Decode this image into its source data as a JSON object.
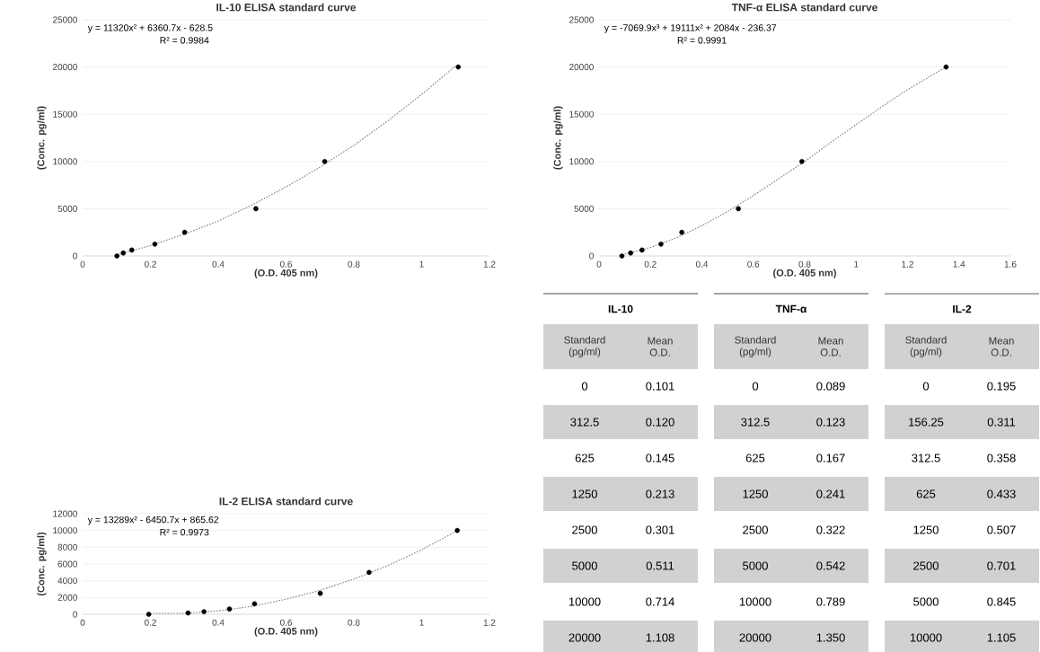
{
  "chart_data": [
    {
      "type": "scatter",
      "title": "IL-10 ELISA standard curve",
      "xlabel": "(O.D. 405 nm)",
      "ylabel": "(Conc. pg/ml)",
      "xlim": [
        0,
        1.2
      ],
      "ylim": [
        0,
        25000
      ],
      "xticks": [
        0,
        0.2,
        0.4,
        0.6,
        0.8,
        1,
        1.2
      ],
      "yticks": [
        0,
        5000,
        10000,
        15000,
        20000,
        25000
      ],
      "grid": "y",
      "annotations": [
        "y = 11320x² + 6360.7x - 628.5",
        "R² = 0.9984"
      ],
      "series": [
        {
          "marker": "circle",
          "color": "#000000",
          "x": [
            0.101,
            0.12,
            0.145,
            0.213,
            0.301,
            0.511,
            0.714,
            1.108
          ],
          "values": [
            0,
            312.5,
            625,
            1250,
            2500,
            5000,
            10000,
            20000
          ]
        },
        {
          "type": "line",
          "marker": "none",
          "line_style": "dotted",
          "color": "#7f7f7f",
          "x": [
            0.1,
            0.2,
            0.3,
            0.4,
            0.5,
            0.6,
            0.7,
            0.8,
            0.9,
            1.0,
            1.1
          ],
          "values": [
            100,
            1100,
            2300,
            3700,
            5400,
            7300,
            9400,
            11700,
            14300,
            17100,
            20100
          ]
        }
      ]
    },
    {
      "type": "scatter",
      "title": "TNF-α ELISA standard curve",
      "xlabel": "(O.D. 405 nm)",
      "ylabel": "(Conc. pg/ml)",
      "xlim": [
        0,
        1.6
      ],
      "ylim": [
        0,
        25000
      ],
      "xticks": [
        0,
        0.2,
        0.4,
        0.6,
        0.8,
        1,
        1.2,
        1.4,
        1.6
      ],
      "yticks": [
        0,
        5000,
        10000,
        15000,
        20000,
        25000
      ],
      "grid": "y",
      "annotations": [
        "y = -7069.9x³ + 19111x² + 2084x - 236.37",
        "R² = 0.9991"
      ],
      "series": [
        {
          "marker": "circle",
          "color": "#000000",
          "x": [
            0.089,
            0.123,
            0.167,
            0.241,
            0.322,
            0.542,
            0.789,
            1.35
          ],
          "values": [
            0,
            312.5,
            625,
            1250,
            2500,
            5000,
            10000,
            20000
          ]
        },
        {
          "type": "line",
          "marker": "none",
          "line_style": "dotted",
          "color": "#7f7f7f",
          "x": [
            0.1,
            0.2,
            0.3,
            0.4,
            0.5,
            0.6,
            0.7,
            0.8,
            0.9,
            1.0,
            1.1,
            1.2,
            1.3,
            1.35
          ],
          "values": [
            200,
            900,
            1900,
            3200,
            4700,
            6400,
            8200,
            10000,
            12000,
            13900,
            15800,
            17600,
            19200,
            20000
          ]
        }
      ]
    },
    {
      "type": "scatter",
      "title": "IL-2 ELISA standard curve",
      "xlabel": "(O.D. 405 nm)",
      "ylabel": "(Conc. pg/ml)",
      "xlim": [
        0,
        1.2
      ],
      "ylim": [
        0,
        12000
      ],
      "xticks": [
        0,
        0.2,
        0.4,
        0.6,
        0.8,
        1,
        1.2
      ],
      "yticks": [
        0,
        2000,
        4000,
        6000,
        8000,
        10000,
        12000
      ],
      "grid": "y",
      "annotations": [
        "y = 13289x² - 6450.7x + 865.62",
        "R² = 0.9973"
      ],
      "series": [
        {
          "marker": "circle",
          "color": "#000000",
          "x": [
            0.195,
            0.311,
            0.358,
            0.433,
            0.507,
            0.701,
            0.845,
            1.105
          ],
          "values": [
            0,
            156.25,
            312.5,
            625,
            1250,
            2500,
            5000,
            10000
          ]
        },
        {
          "type": "line",
          "marker": "none",
          "line_style": "dotted",
          "color": "#7f7f7f",
          "x": [
            0.2,
            0.3,
            0.4,
            0.5,
            0.6,
            0.7,
            0.8,
            0.9,
            1.0,
            1.1
          ],
          "values": [
            100,
            100,
            400,
            950,
            1800,
            2850,
            4200,
            5800,
            7700,
            9850
          ]
        }
      ]
    },
    {
      "type": "other",
      "title": "IL-10",
      "xlabel": "Standard (pg/ml)",
      "categories": [
        "0",
        "312.5",
        "625",
        "1250",
        "2500",
        "5000",
        "10000",
        "20000"
      ],
      "series": [
        {
          "name": "Mean O.D.",
          "values": [
            0.101,
            0.12,
            0.145,
            0.213,
            0.301,
            0.511,
            0.714,
            1.108
          ],
          "value_labels": [
            "0.101",
            "0.120",
            "0.145",
            "0.213",
            "0.301",
            "0.511",
            "0.714",
            "1.108"
          ]
        }
      ]
    },
    {
      "type": "other",
      "title": "TNF-α",
      "xlabel": "Standard (pg/ml)",
      "categories": [
        "0",
        "312.5",
        "625",
        "1250",
        "2500",
        "5000",
        "10000",
        "20000"
      ],
      "series": [
        {
          "name": "Mean O.D.",
          "values": [
            0.089,
            0.123,
            0.167,
            0.241,
            0.322,
            0.542,
            0.789,
            1.35
          ],
          "value_labels": [
            "0.089",
            "0.123",
            "0.167",
            "0.241",
            "0.322",
            "0.542",
            "0.789",
            "1.350"
          ]
        }
      ]
    },
    {
      "type": "other",
      "title": "IL-2",
      "xlabel": "Standard (pg/ml)",
      "categories": [
        "0",
        "156.25",
        "312.5",
        "625",
        "1250",
        "2500",
        "5000",
        "10000"
      ],
      "series": [
        {
          "name": "Mean O.D.",
          "values": [
            0.195,
            0.311,
            0.358,
            0.433,
            0.507,
            0.701,
            0.845,
            1.105
          ],
          "value_labels": [
            "0.195",
            "0.311",
            "0.358",
            "0.433",
            "0.507",
            "0.701",
            "0.845",
            "1.105"
          ]
        }
      ]
    }
  ]
}
